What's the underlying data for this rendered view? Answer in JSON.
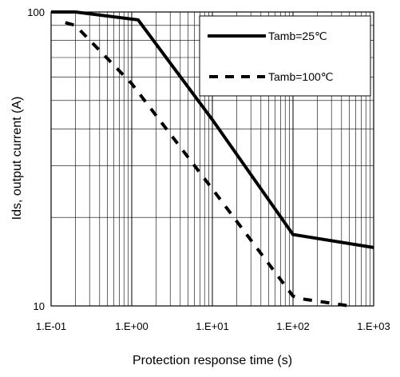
{
  "chart_data": {
    "type": "line",
    "title": "",
    "xlabel": "Protection response time (s)",
    "ylabel": "Ids, output current (A)",
    "x_scale": "log",
    "y_scale": "log",
    "xlim": [
      0.1,
      1000
    ],
    "ylim": [
      10,
      100
    ],
    "x_tick_labels": [
      "1.E-01",
      "1.E+00",
      "1.E+01",
      "1.E+02",
      "1.E+03"
    ],
    "y_tick_labels": [
      "10",
      "100"
    ],
    "grid": true,
    "legend_position": "top-right",
    "series": [
      {
        "name": "Tamb=25℃",
        "line_style": "solid",
        "color": "#000000",
        "x": [
          0.1,
          0.2,
          1.2,
          10,
          100,
          1000
        ],
        "y": [
          100,
          100,
          94,
          43,
          17.5,
          15.8
        ]
      },
      {
        "name": "Tamb=100℃",
        "line_style": "dashed",
        "color": "#000000",
        "x": [
          0.15,
          0.2,
          1,
          10,
          100,
          120,
          500
        ],
        "y": [
          92,
          90,
          57,
          25,
          10.8,
          10.6,
          10
        ]
      }
    ]
  }
}
